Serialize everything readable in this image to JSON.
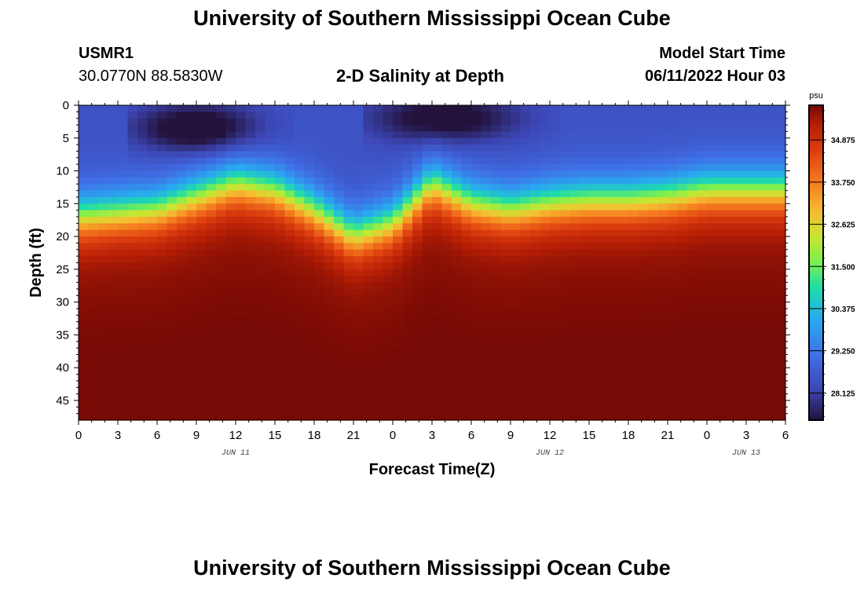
{
  "header": {
    "title": "University of Southern Mississippi Ocean Cube",
    "station": "USMR1",
    "coordinates": "30.0770N  88.5830W",
    "subtitle": "2-D Salinity at Depth",
    "model_start_label": "Model Start Time",
    "model_start_value": "06/11/2022 Hour 03"
  },
  "footer": {
    "title": "University of Southern Mississippi Ocean Cube"
  },
  "chart_data": {
    "type": "heatmap",
    "title": "2-D Salinity at Depth",
    "xlabel": "Forecast Time(Z)",
    "ylabel": "Depth (ft)",
    "x_range_hours": [
      0,
      54
    ],
    "y_range_ft": [
      0,
      48
    ],
    "x_tick_labels": [
      "0",
      "3",
      "6",
      "9",
      "12",
      "15",
      "18",
      "21",
      "0",
      "3",
      "6",
      "9",
      "12",
      "15",
      "18",
      "21",
      "0",
      "3",
      "6"
    ],
    "y_tick_labels": [
      "0",
      "5",
      "10",
      "15",
      "20",
      "25",
      "30",
      "35",
      "40",
      "45"
    ],
    "date_labels": [
      {
        "text": "JUN 11",
        "hour": 12
      },
      {
        "text": "JUN 12",
        "hour": 36
      },
      {
        "text": "JUN 13",
        "hour": 51
      }
    ],
    "colorbar": {
      "unit": "psu",
      "min": 27.4,
      "max": 35.8,
      "tick_labels": [
        "34.875",
        "33.750",
        "32.625",
        "31.500",
        "30.375",
        "29.250",
        "28.125"
      ],
      "tick_values": [
        34.875,
        33.75,
        32.625,
        31.5,
        30.375,
        29.25,
        28.125
      ]
    },
    "halocline_depth_ft": [
      {
        "hour": 0,
        "depth": 17
      },
      {
        "hour": 3,
        "depth": 16.5
      },
      {
        "hour": 6,
        "depth": 16
      },
      {
        "hour": 9,
        "depth": 14
      },
      {
        "hour": 12,
        "depth": 12
      },
      {
        "hour": 15,
        "depth": 13
      },
      {
        "hour": 18,
        "depth": 16
      },
      {
        "hour": 21,
        "depth": 20
      },
      {
        "hour": 24,
        "depth": 18
      },
      {
        "hour": 27,
        "depth": 12
      },
      {
        "hour": 30,
        "depth": 15
      },
      {
        "hour": 33,
        "depth": 16
      },
      {
        "hour": 36,
        "depth": 15
      },
      {
        "hour": 39,
        "depth": 14.5
      },
      {
        "hour": 42,
        "depth": 14.5
      },
      {
        "hour": 45,
        "depth": 14
      },
      {
        "hour": 48,
        "depth": 13
      },
      {
        "hour": 51,
        "depth": 13
      },
      {
        "hour": 54,
        "depth": 13
      }
    ],
    "surface_minima": [
      {
        "hour_start": 5,
        "hour_end": 15,
        "center_hour": 9,
        "depth_ft": 3.5,
        "salinity_psu": 27.5
      },
      {
        "hour_start": 23,
        "hour_end": 35,
        "center_hour": 28,
        "depth_ft": 2,
        "salinity_psu": 27.6
      }
    ],
    "surface_salinity_psu": 28.5,
    "bottom_salinity_psu": 35.6
  }
}
